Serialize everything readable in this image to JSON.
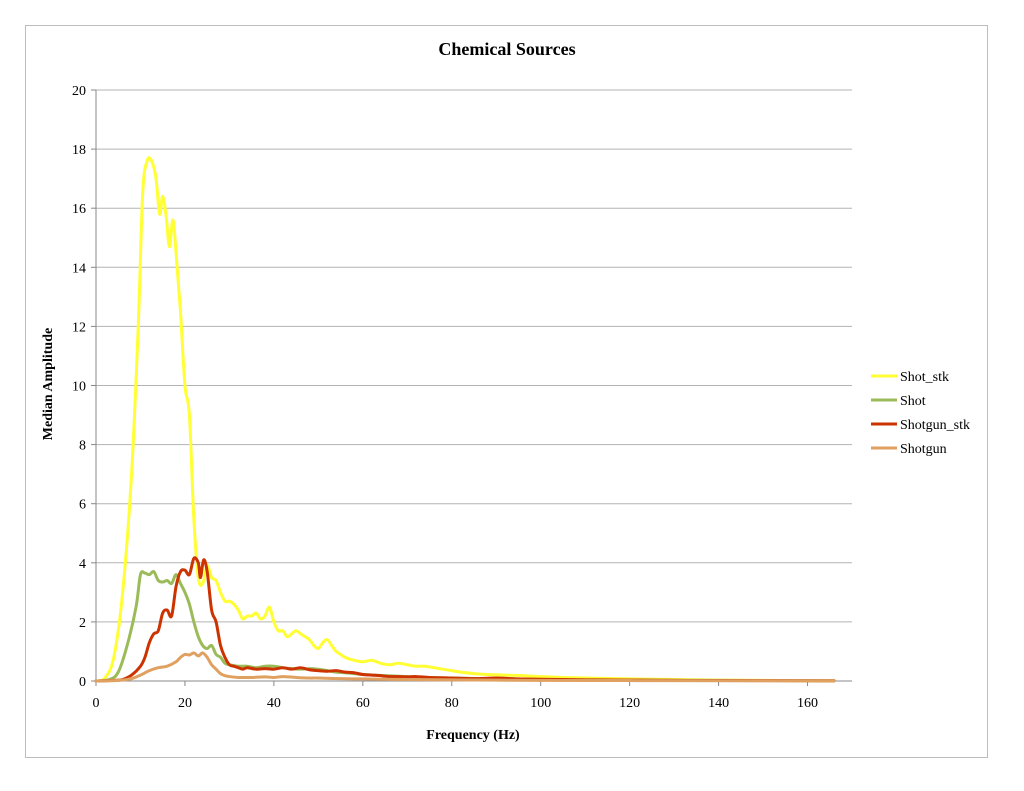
{
  "chart_data": {
    "type": "line",
    "title": "Chemical Sources",
    "xlabel": "Frequency (Hz)",
    "ylabel": "Median Amplitude",
    "xlim": [
      0,
      170
    ],
    "ylim": [
      0,
      20
    ],
    "xticks": [
      0,
      20,
      40,
      60,
      80,
      100,
      120,
      140,
      160
    ],
    "yticks": [
      0,
      2,
      4,
      6,
      8,
      10,
      12,
      14,
      16,
      18,
      20
    ],
    "grid": "horizontal",
    "legend_position": "right",
    "series": [
      {
        "name": "Shot_stk",
        "color": "#ffff33",
        "points": [
          [
            0,
            0
          ],
          [
            2,
            0.1
          ],
          [
            4,
            0.8
          ],
          [
            6,
            3
          ],
          [
            8,
            7
          ],
          [
            9.5,
            12
          ],
          [
            10.5,
            16.5
          ],
          [
            11.5,
            17.6
          ],
          [
            12.5,
            17.6
          ],
          [
            13.5,
            17
          ],
          [
            14.3,
            15.8
          ],
          [
            15,
            16.4
          ],
          [
            15.8,
            15.7
          ],
          [
            16.5,
            14.7
          ],
          [
            17.3,
            15.6
          ],
          [
            18,
            14.5
          ],
          [
            19,
            12.5
          ],
          [
            20,
            10
          ],
          [
            21,
            9
          ],
          [
            22,
            5.5
          ],
          [
            23,
            3.5
          ],
          [
            24,
            3.3
          ],
          [
            25,
            3.9
          ],
          [
            26,
            3.5
          ],
          [
            27,
            3.4
          ],
          [
            28,
            3
          ],
          [
            29,
            2.7
          ],
          [
            30,
            2.7
          ],
          [
            31,
            2.6
          ],
          [
            32,
            2.4
          ],
          [
            33,
            2.1
          ],
          [
            34,
            2.2
          ],
          [
            35,
            2.2
          ],
          [
            36,
            2.3
          ],
          [
            37,
            2.1
          ],
          [
            38,
            2.2
          ],
          [
            39,
            2.5
          ],
          [
            40,
            2.0
          ],
          [
            41,
            1.7
          ],
          [
            42,
            1.7
          ],
          [
            43,
            1.5
          ],
          [
            44,
            1.6
          ],
          [
            45,
            1.7
          ],
          [
            46,
            1.6
          ],
          [
            47,
            1.5
          ],
          [
            48,
            1.4
          ],
          [
            49,
            1.2
          ],
          [
            50,
            1.1
          ],
          [
            51,
            1.3
          ],
          [
            52,
            1.4
          ],
          [
            53,
            1.2
          ],
          [
            54,
            1.0
          ],
          [
            55,
            0.9
          ],
          [
            56,
            0.8
          ],
          [
            58,
            0.7
          ],
          [
            60,
            0.65
          ],
          [
            62,
            0.7
          ],
          [
            64,
            0.6
          ],
          [
            66,
            0.55
          ],
          [
            68,
            0.6
          ],
          [
            70,
            0.55
          ],
          [
            72,
            0.5
          ],
          [
            74,
            0.5
          ],
          [
            76,
            0.45
          ],
          [
            78,
            0.4
          ],
          [
            80,
            0.35
          ],
          [
            82,
            0.3
          ],
          [
            85,
            0.25
          ],
          [
            88,
            0.22
          ],
          [
            92,
            0.2
          ],
          [
            96,
            0.18
          ],
          [
            100,
            0.15
          ],
          [
            105,
            0.12
          ],
          [
            110,
            0.1
          ],
          [
            120,
            0.07
          ],
          [
            130,
            0.05
          ],
          [
            140,
            0.03
          ],
          [
            150,
            0.02
          ],
          [
            160,
            0.01
          ],
          [
            166,
            0.01
          ]
        ]
      },
      {
        "name": "Shot",
        "color": "#9bbb59",
        "points": [
          [
            0,
            0
          ],
          [
            3,
            0.05
          ],
          [
            5,
            0.3
          ],
          [
            7,
            1.2
          ],
          [
            9,
            2.5
          ],
          [
            10,
            3.6
          ],
          [
            11,
            3.65
          ],
          [
            12,
            3.6
          ],
          [
            13,
            3.7
          ],
          [
            14,
            3.4
          ],
          [
            15,
            3.35
          ],
          [
            16,
            3.4
          ],
          [
            17,
            3.3
          ],
          [
            18,
            3.6
          ],
          [
            19,
            3.3
          ],
          [
            20,
            3.0
          ],
          [
            21,
            2.6
          ],
          [
            22,
            2.0
          ],
          [
            23,
            1.5
          ],
          [
            24,
            1.2
          ],
          [
            25,
            1.1
          ],
          [
            26,
            1.2
          ],
          [
            27,
            0.9
          ],
          [
            28,
            0.8
          ],
          [
            29,
            0.6
          ],
          [
            30,
            0.55
          ],
          [
            32,
            0.5
          ],
          [
            34,
            0.5
          ],
          [
            36,
            0.45
          ],
          [
            38,
            0.5
          ],
          [
            40,
            0.5
          ],
          [
            42,
            0.45
          ],
          [
            44,
            0.42
          ],
          [
            46,
            0.4
          ],
          [
            48,
            0.42
          ],
          [
            50,
            0.4
          ],
          [
            52,
            0.35
          ],
          [
            54,
            0.3
          ],
          [
            56,
            0.28
          ],
          [
            58,
            0.25
          ],
          [
            60,
            0.22
          ],
          [
            65,
            0.18
          ],
          [
            70,
            0.15
          ],
          [
            75,
            0.12
          ],
          [
            80,
            0.1
          ],
          [
            90,
            0.07
          ],
          [
            100,
            0.05
          ],
          [
            110,
            0.04
          ],
          [
            120,
            0.03
          ],
          [
            140,
            0.02
          ],
          [
            166,
            0.01
          ]
        ]
      },
      {
        "name": "Shotgun_stk",
        "color": "#cc3300",
        "points": [
          [
            0,
            0
          ],
          [
            4,
            0.02
          ],
          [
            6,
            0.05
          ],
          [
            8,
            0.2
          ],
          [
            10,
            0.5
          ],
          [
            11,
            0.8
          ],
          [
            12,
            1.3
          ],
          [
            13,
            1.6
          ],
          [
            14,
            1.7
          ],
          [
            15,
            2.3
          ],
          [
            16,
            2.4
          ],
          [
            17,
            2.2
          ],
          [
            18,
            3.2
          ],
          [
            19,
            3.7
          ],
          [
            20,
            3.75
          ],
          [
            21,
            3.6
          ],
          [
            22,
            4.15
          ],
          [
            23,
            4.0
          ],
          [
            23.5,
            3.5
          ],
          [
            24.2,
            4.1
          ],
          [
            25,
            3.7
          ],
          [
            26,
            2.4
          ],
          [
            27,
            2.0
          ],
          [
            28,
            1.2
          ],
          [
            29,
            0.8
          ],
          [
            30,
            0.55
          ],
          [
            31,
            0.5
          ],
          [
            32,
            0.45
          ],
          [
            33,
            0.4
          ],
          [
            34,
            0.45
          ],
          [
            36,
            0.4
          ],
          [
            38,
            0.42
          ],
          [
            40,
            0.4
          ],
          [
            42,
            0.45
          ],
          [
            44,
            0.4
          ],
          [
            46,
            0.45
          ],
          [
            48,
            0.38
          ],
          [
            50,
            0.35
          ],
          [
            52,
            0.33
          ],
          [
            54,
            0.35
          ],
          [
            56,
            0.3
          ],
          [
            58,
            0.28
          ],
          [
            60,
            0.22
          ],
          [
            62,
            0.2
          ],
          [
            64,
            0.18
          ],
          [
            66,
            0.15
          ],
          [
            68,
            0.15
          ],
          [
            70,
            0.14
          ],
          [
            72,
            0.15
          ],
          [
            75,
            0.12
          ],
          [
            80,
            0.1
          ],
          [
            85,
            0.08
          ],
          [
            90,
            0.1
          ],
          [
            95,
            0.07
          ],
          [
            100,
            0.06
          ],
          [
            105,
            0.05
          ],
          [
            110,
            0.04
          ],
          [
            120,
            0.03
          ],
          [
            130,
            0.02
          ],
          [
            140,
            0.015
          ],
          [
            166,
            0.01
          ]
        ]
      },
      {
        "name": "Shotgun",
        "color": "#e0a060",
        "points": [
          [
            0,
            0
          ],
          [
            5,
            0.02
          ],
          [
            8,
            0.08
          ],
          [
            10,
            0.2
          ],
          [
            12,
            0.35
          ],
          [
            14,
            0.45
          ],
          [
            16,
            0.5
          ],
          [
            18,
            0.65
          ],
          [
            19,
            0.8
          ],
          [
            20,
            0.9
          ],
          [
            21,
            0.88
          ],
          [
            22,
            0.95
          ],
          [
            23,
            0.85
          ],
          [
            24,
            0.95
          ],
          [
            25,
            0.8
          ],
          [
            26,
            0.55
          ],
          [
            27,
            0.4
          ],
          [
            28,
            0.25
          ],
          [
            29,
            0.18
          ],
          [
            30,
            0.15
          ],
          [
            32,
            0.12
          ],
          [
            35,
            0.12
          ],
          [
            38,
            0.14
          ],
          [
            40,
            0.12
          ],
          [
            42,
            0.15
          ],
          [
            45,
            0.12
          ],
          [
            48,
            0.1
          ],
          [
            50,
            0.1
          ],
          [
            55,
            0.08
          ],
          [
            60,
            0.07
          ],
          [
            65,
            0.06
          ],
          [
            70,
            0.05
          ],
          [
            80,
            0.04
          ],
          [
            90,
            0.03
          ],
          [
            100,
            0.02
          ],
          [
            120,
            0.015
          ],
          [
            140,
            0.01
          ],
          [
            166,
            0.01
          ]
        ]
      }
    ]
  }
}
